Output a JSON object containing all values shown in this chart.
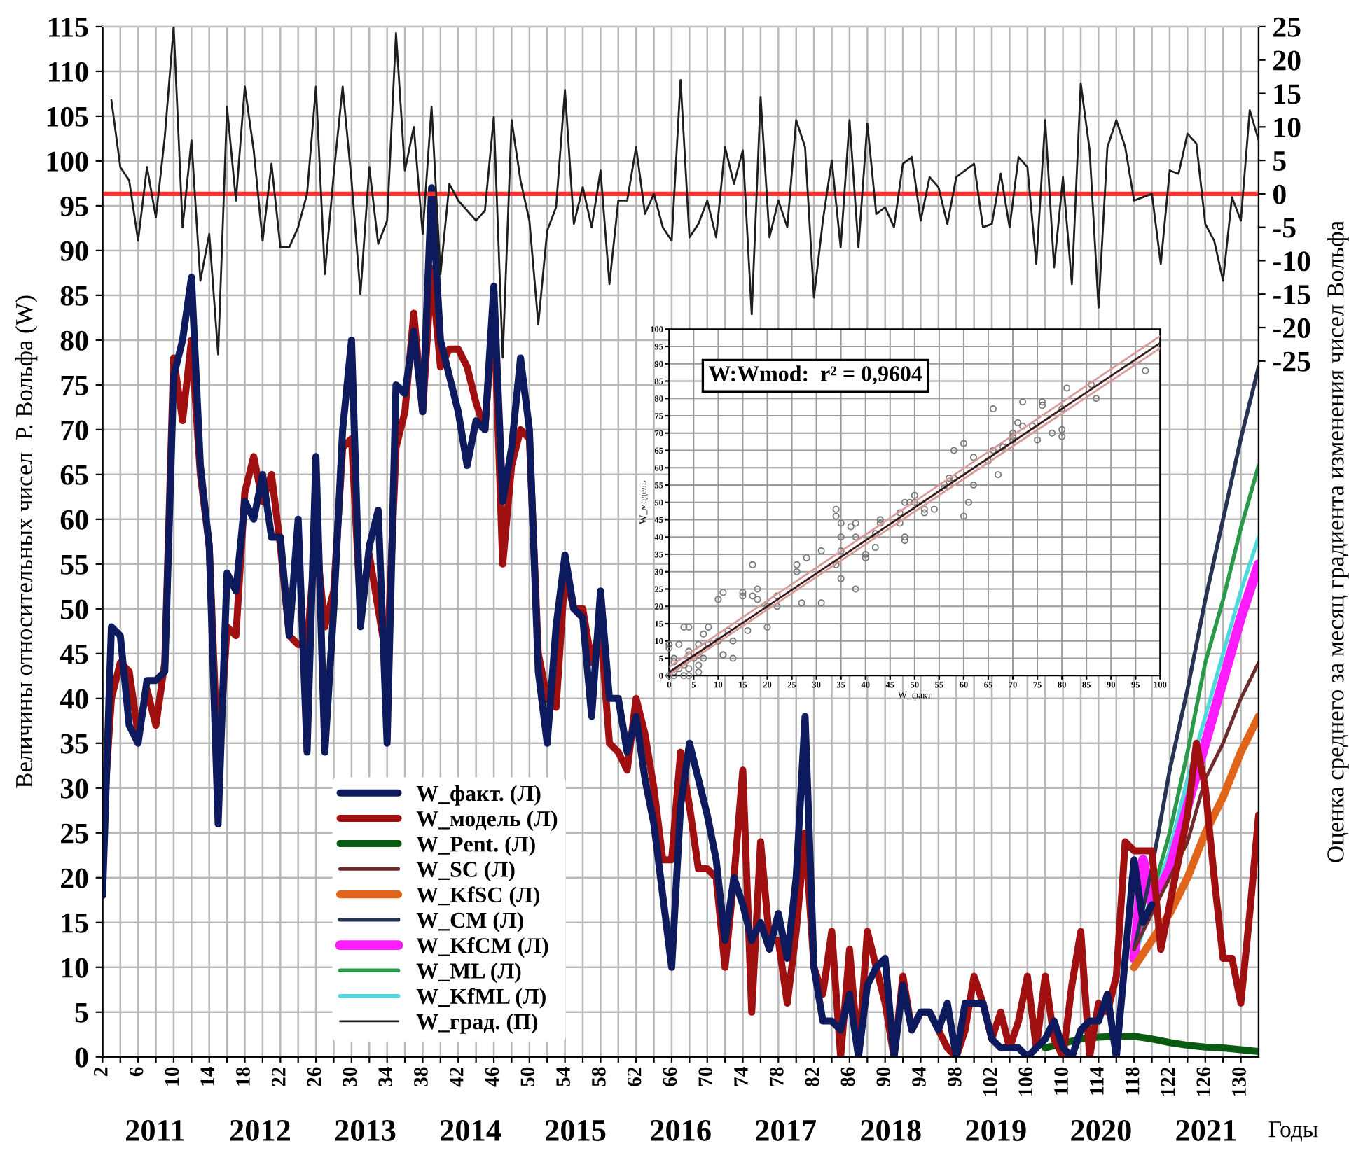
{
  "chart_data": [
    {
      "type": "line",
      "ylabel": "Величины относительных чисел  Р. Вольфа (W)",
      "y2label": "Оценка среднего за месяц градиента изменения чисел Вольфа",
      "x2label": "Годы",
      "xlim": [
        2,
        132
      ],
      "ylim": [
        0,
        115
      ],
      "y2lim": [
        -129,
        25
      ],
      "yticks": [
        0,
        5,
        10,
        15,
        20,
        25,
        30,
        35,
        40,
        45,
        50,
        55,
        60,
        65,
        70,
        75,
        80,
        85,
        90,
        95,
        100,
        105,
        110,
        115
      ],
      "y2ticks": [
        -25,
        -20,
        -15,
        -10,
        -5,
        0,
        5,
        10,
        15,
        20,
        25
      ],
      "xticks": [
        2,
        {
          "value": 4,
          "label": null
        },
        6,
        {
          "value": 8,
          "label": null
        },
        10,
        {
          "value": 12,
          "label": null
        },
        14,
        {
          "value": 16,
          "label": null
        },
        18,
        {
          "value": 20,
          "label": null
        },
        22,
        {
          "value": 24,
          "label": null
        },
        26,
        {
          "value": 28,
          "label": null
        },
        30,
        {
          "value": 32,
          "label": null
        },
        34,
        {
          "value": 36,
          "label": null
        },
        38,
        {
          "value": 40,
          "label": null
        },
        42,
        {
          "value": 44,
          "label": null
        },
        46,
        {
          "value": 48,
          "label": null
        },
        50,
        {
          "value": 52,
          "label": null
        },
        54,
        {
          "value": 56,
          "label": null
        },
        58,
        {
          "value": 60,
          "label": null
        },
        62,
        {
          "value": 64,
          "label": null
        },
        66,
        {
          "value": 68,
          "label": null
        },
        70,
        {
          "value": 72,
          "label": null
        },
        74,
        {
          "value": 76,
          "label": null
        },
        78,
        {
          "value": 80,
          "label": null
        },
        82,
        {
          "value": 84,
          "label": null
        },
        86,
        {
          "value": 88,
          "label": null
        },
        90,
        {
          "value": 92,
          "label": null
        },
        94,
        {
          "value": 96,
          "label": null
        },
        98,
        {
          "value": 100,
          "label": null
        },
        102,
        {
          "value": 104,
          "label": null
        },
        106,
        {
          "value": 108,
          "label": null
        },
        110,
        {
          "value": 112,
          "label": null
        },
        114,
        {
          "value": 116,
          "label": null
        },
        118,
        {
          "value": 120,
          "label": null
        },
        122,
        {
          "value": 124,
          "label": null
        },
        126,
        {
          "value": 128,
          "label": null
        },
        130
      ],
      "x2lim": [
        2010.5,
        2021.5
      ],
      "x2ticks": [
        2011,
        2012,
        2013,
        2014,
        2015,
        2016,
        2017,
        2018,
        2019,
        2020,
        2021
      ],
      "grid": true,
      "legend": "bottom left",
      "ref_lines": [
        {
          "axis": "y2",
          "value": 0,
          "color": "#ff3030"
        }
      ],
      "series": [
        {
          "name": "W_факт. (Л)",
          "color": "#0d1a5e",
          "x": [
            2,
            3,
            4,
            5,
            6,
            7,
            8,
            9,
            10,
            11,
            12,
            13,
            14,
            15,
            16,
            17,
            18,
            19,
            20,
            21,
            22,
            23,
            24,
            25,
            26,
            27,
            28,
            29,
            30,
            31,
            32,
            33,
            34,
            35,
            36,
            37,
            38,
            39,
            40,
            41,
            42,
            43,
            44,
            45,
            46,
            47,
            48,
            49,
            50,
            51,
            52,
            53,
            54,
            55,
            56,
            57,
            58,
            59,
            60,
            61,
            62,
            63,
            64,
            65,
            66,
            67,
            68,
            69,
            70,
            71,
            72,
            73,
            74,
            75,
            76,
            77,
            78,
            79,
            80,
            81,
            82,
            83,
            84,
            85,
            86,
            87,
            88,
            89,
            90,
            91,
            92,
            93,
            94,
            95,
            96,
            97,
            98,
            99,
            100,
            101,
            102,
            103,
            104,
            105,
            106,
            107,
            108,
            109,
            110,
            111,
            112,
            113,
            114,
            115,
            116,
            117,
            118,
            119,
            120
          ],
          "values": [
            18,
            48,
            47,
            37,
            35,
            42,
            42,
            43,
            76,
            80,
            87,
            66,
            57,
            26,
            54,
            52,
            62,
            60,
            65,
            58,
            58,
            47,
            60,
            34,
            67,
            34,
            50,
            70,
            80,
            48,
            57,
            61,
            35,
            75,
            74,
            81,
            72,
            97,
            80,
            76,
            72,
            66,
            71,
            70,
            86,
            62,
            68,
            78,
            70,
            43,
            35,
            48,
            56,
            50,
            49,
            38,
            52,
            40,
            40,
            34,
            38,
            31,
            26,
            18,
            10,
            28,
            35,
            31,
            27,
            22,
            13,
            20,
            17,
            13,
            15,
            12,
            16,
            11,
            20,
            38,
            10,
            4,
            4,
            3,
            7,
            0,
            8,
            10,
            11,
            0,
            8,
            3,
            5,
            5,
            3,
            6,
            0,
            6,
            6,
            6,
            2,
            1,
            1,
            1,
            0,
            1,
            2,
            4,
            1,
            0,
            3,
            4,
            4,
            7,
            0,
            11,
            22,
            15,
            17
          ]
        },
        {
          "name": "W_модель (Л)",
          "color": "#a01010",
          "x": [
            2,
            3,
            4,
            5,
            6,
            7,
            8,
            9,
            10,
            11,
            12,
            13,
            14,
            15,
            16,
            17,
            18,
            19,
            20,
            21,
            22,
            23,
            24,
            25,
            26,
            27,
            28,
            29,
            30,
            31,
            32,
            33,
            34,
            35,
            36,
            37,
            38,
            39,
            40,
            41,
            42,
            43,
            44,
            45,
            46,
            47,
            48,
            49,
            50,
            51,
            52,
            53,
            54,
            55,
            56,
            57,
            58,
            59,
            60,
            61,
            62,
            63,
            64,
            65,
            66,
            67,
            68,
            69,
            70,
            71,
            72,
            73,
            74,
            75,
            76,
            77,
            78,
            79,
            80,
            81,
            82,
            83,
            84,
            85,
            86,
            87,
            88,
            89,
            90,
            91,
            92,
            93,
            94,
            95,
            96,
            97,
            98,
            99,
            100,
            101,
            102,
            103,
            104,
            105,
            106,
            107,
            108,
            109,
            110,
            111,
            112,
            113,
            114,
            115,
            116,
            117,
            118,
            119,
            120,
            121,
            122,
            123,
            124,
            125,
            126,
            127,
            128,
            129,
            130,
            131,
            132
          ],
          "values": [
            25,
            40,
            44,
            43,
            36,
            41,
            37,
            44,
            78,
            71,
            80,
            65,
            57,
            32,
            48,
            47,
            63,
            67,
            62,
            65,
            57,
            47,
            46,
            46,
            58,
            48,
            52,
            68,
            69,
            50,
            56,
            50,
            44,
            68,
            72,
            83,
            72,
            88,
            77,
            79,
            79,
            77,
            73,
            70,
            84,
            55,
            66,
            70,
            69,
            45,
            40,
            39,
            54,
            50,
            50,
            44,
            48,
            35,
            34,
            32,
            40,
            36,
            30,
            22,
            22,
            34,
            28,
            21,
            21,
            20,
            10,
            20,
            32,
            5,
            24,
            13,
            13,
            6,
            14,
            25,
            10,
            7,
            14,
            0,
            12,
            0,
            14,
            10,
            6,
            0,
            9,
            3,
            5,
            5,
            3,
            1,
            0,
            3,
            9,
            6,
            2,
            5,
            1,
            4,
            9,
            1,
            9,
            2,
            0,
            8,
            14,
            0,
            6,
            5,
            9,
            24,
            23,
            23,
            23,
            12,
            17,
            22,
            27,
            35,
            30,
            20,
            11,
            11,
            6,
            16,
            27
          ]
        },
        {
          "name": "W_Pent. (Л)",
          "color": "#0b5a12",
          "x": [
            108,
            110,
            112,
            114,
            116,
            118,
            120,
            122,
            124,
            126,
            128,
            130,
            132
          ],
          "values": [
            1,
            1.5,
            2,
            2.2,
            2.3,
            2.3,
            2,
            1.6,
            1.3,
            1.1,
            1,
            0.8,
            0.6
          ]
        },
        {
          "name": "W_SC (Л)",
          "color": "#6e2c2c",
          "x": [
            118,
            120,
            122,
            124,
            126,
            128,
            130,
            132
          ],
          "values": [
            12,
            16,
            20,
            24,
            31,
            35,
            40,
            44
          ]
        },
        {
          "name": "W_KfSC (Л)",
          "color": "#e0641a",
          "x": [
            118,
            120,
            122,
            124,
            126,
            128,
            130,
            132
          ],
          "values": [
            10,
            13,
            16,
            20,
            25,
            29,
            34,
            38
          ]
        },
        {
          "name": "W_CM (Л)",
          "color": "#263352",
          "x": [
            118,
            120,
            122,
            124,
            126,
            128,
            130,
            132
          ],
          "values": [
            12,
            21,
            32,
            41,
            51,
            60,
            69,
            77
          ]
        },
        {
          "name": "W_KfCM (Л)",
          "color": "#ff1dff",
          "x": [
            118,
            119,
            120,
            121,
            122,
            124,
            126,
            128,
            130,
            132
          ],
          "values": [
            11,
            22,
            17,
            19,
            21,
            28,
            35,
            42,
            49,
            55
          ]
        },
        {
          "name": "W_ML (Л)",
          "color": "#2a9a4a",
          "x": [
            118,
            120,
            122,
            124,
            126,
            128,
            130,
            132
          ],
          "values": [
            12,
            18,
            25,
            34,
            44,
            51,
            59,
            66
          ]
        },
        {
          "name": "W_KfML (Л)",
          "color": "#4fd8e0",
          "x": [
            118,
            120,
            122,
            124,
            126,
            128,
            130,
            132
          ],
          "values": [
            11,
            17,
            23,
            31,
            38,
            45,
            52,
            58
          ]
        },
        {
          "name": "W_град. (П)",
          "color": "#1e1e1e",
          "axis": "y2",
          "x": [
            3,
            4,
            5,
            6,
            7,
            8,
            9,
            10,
            11,
            12,
            13,
            14,
            15,
            16,
            17,
            18,
            19,
            20,
            21,
            22,
            23,
            24,
            25,
            26,
            27,
            28,
            29,
            30,
            31,
            32,
            33,
            34,
            35,
            36,
            37,
            38,
            39,
            40,
            41,
            42,
            43,
            44,
            45,
            46,
            47,
            48,
            49,
            50,
            51,
            52,
            53,
            54,
            55,
            56,
            57,
            58,
            59,
            60,
            61,
            62,
            63,
            64,
            65,
            66,
            67,
            68,
            69,
            70,
            71,
            72,
            73,
            74,
            75,
            76,
            77,
            78,
            79,
            80,
            81,
            82,
            83,
            84,
            85,
            86,
            87,
            88,
            89,
            90,
            91,
            92,
            93,
            94,
            95,
            96,
            97,
            98,
            99,
            100,
            101,
            102,
            103,
            104,
            105,
            106,
            107,
            108,
            109,
            110,
            111,
            112,
            113,
            114,
            115,
            116,
            117,
            118,
            119,
            120,
            121,
            122,
            123,
            124,
            125,
            126,
            127,
            128,
            129,
            130,
            131,
            132
          ],
          "values": [
            14,
            4,
            2,
            -7,
            4,
            -3.5,
            8.5,
            25,
            -5,
            8,
            -13,
            -6,
            -24,
            13,
            -1,
            16,
            6.5,
            -7,
            4.5,
            -8,
            -8,
            -5,
            0,
            16,
            -12,
            3,
            16,
            2,
            -15,
            4,
            -7.5,
            -4,
            24,
            3.5,
            10,
            -6,
            13,
            -12,
            1.5,
            -1,
            -2.5,
            -4,
            -2.5,
            11.5,
            -24.5,
            11,
            2,
            -4,
            -19.5,
            -5.5,
            -2,
            15.5,
            -4.5,
            1,
            -5,
            3.5,
            -13.5,
            -1,
            -1,
            7,
            -3,
            0,
            -5,
            -7,
            17,
            -6.5,
            -4.5,
            -1,
            -6.5,
            7,
            1.5,
            6.5,
            -18,
            14.5,
            -6.5,
            -1,
            -5,
            11,
            7,
            -15.5,
            -4,
            5,
            -8,
            11,
            -8,
            10.5,
            -3,
            -2,
            -5,
            4.5,
            5.5,
            -4,
            2.5,
            1,
            -4.5,
            2.5,
            3.5,
            4.5,
            -5,
            -4.5,
            3,
            -5,
            5.5,
            4,
            -10.5,
            11,
            -11,
            2.5,
            -13.5,
            16.5,
            6.5,
            -17,
            7,
            11,
            7,
            -1,
            -0.5,
            0,
            -10.5,
            3.5,
            3,
            9,
            7.5,
            -4.5,
            -7,
            -13,
            -0.5,
            -4,
            12.5,
            8
          ]
        }
      ]
    },
    {
      "type": "scatter",
      "xlabel": "W_факт",
      "ylabel": "W_модель",
      "annotations": [
        "W:Wmod:  r² = 0,9604"
      ],
      "xlim": [
        0,
        100
      ],
      "ylim": [
        0,
        100
      ],
      "xticks": [
        0,
        5,
        10,
        15,
        20,
        25,
        30,
        35,
        40,
        45,
        50,
        55,
        60,
        65,
        70,
        75,
        80,
        85,
        90,
        95,
        100
      ],
      "yticks": [
        0,
        5,
        10,
        15,
        20,
        25,
        30,
        35,
        40,
        45,
        50,
        55,
        60,
        65,
        70,
        75,
        80,
        85,
        90,
        95,
        100
      ],
      "grid": true,
      "series": [
        {
          "color": "#777777",
          "marker": "circle",
          "x": [
            18,
            48,
            47,
            37,
            35,
            42,
            42,
            43,
            76,
            80,
            87,
            66,
            57,
            26,
            54,
            52,
            62,
            60,
            65,
            58,
            58,
            47,
            60,
            34,
            67,
            34,
            50,
            70,
            80,
            48,
            57,
            61,
            35,
            75,
            74,
            81,
            72,
            97,
            80,
            76,
            72,
            66,
            71,
            70,
            86,
            62,
            68,
            78,
            70,
            43,
            35,
            48,
            56,
            50,
            49,
            38,
            52,
            40,
            40,
            34,
            38,
            31,
            26,
            18,
            10,
            28,
            35,
            31,
            27,
            22,
            13,
            20,
            17,
            13,
            15,
            12,
            16,
            11,
            20,
            38,
            10,
            4,
            4,
            3,
            7,
            0,
            8,
            10,
            11,
            8,
            3,
            5,
            5,
            3,
            6,
            6,
            6,
            6,
            2,
            1,
            1,
            1,
            0,
            1,
            2,
            4,
            1,
            0,
            3,
            4,
            4,
            7,
            0,
            11,
            22,
            15,
            17
          ],
          "values": [
            25,
            40,
            44,
            43,
            36,
            41,
            37,
            44,
            78,
            71,
            80,
            65,
            57,
            32,
            48,
            47,
            63,
            67,
            62,
            65,
            57,
            47,
            46,
            46,
            58,
            48,
            52,
            68,
            69,
            50,
            56,
            50,
            44,
            68,
            72,
            83,
            72,
            88,
            77,
            79,
            79,
            77,
            73,
            70,
            84,
            55,
            66,
            70,
            69,
            45,
            40,
            39,
            54,
            50,
            50,
            44,
            48,
            35,
            34,
            32,
            40,
            36,
            30,
            22,
            22,
            34,
            28,
            21,
            21,
            20,
            10,
            20,
            32,
            5,
            24,
            13,
            13,
            6,
            14,
            25,
            10,
            7,
            14,
            0,
            12,
            0,
            14,
            10,
            6,
            9,
            3,
            5,
            5,
            3,
            1,
            3,
            9,
            6,
            2,
            5,
            1,
            4,
            9,
            1,
            9,
            2,
            0,
            8,
            14,
            0,
            6,
            5,
            9,
            24,
            23,
            23,
            23
          ]
        },
        {
          "type": "line",
          "color": "#d99a9a",
          "x": [
            0,
            100
          ],
          "values": [
            2.5,
            98
          ]
        },
        {
          "type": "line",
          "color": "#d99a9a",
          "x": [
            0,
            100
          ],
          "values": [
            0.2,
            94.5
          ]
        },
        {
          "type": "line",
          "color": "#3a1a1a",
          "x": [
            0,
            100
          ],
          "values": [
            1,
            96
          ]
        }
      ]
    }
  ]
}
